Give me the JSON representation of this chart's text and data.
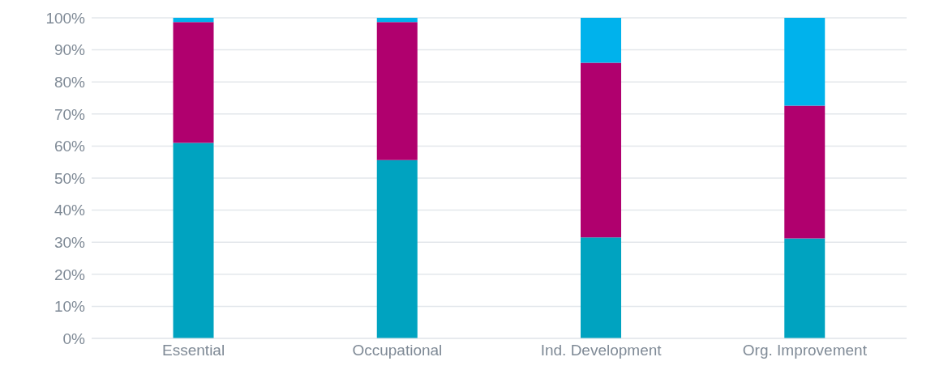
{
  "chart_data": {
    "type": "bar",
    "stacked": true,
    "categories": [
      "Essential",
      "Occupational",
      "Ind. Development",
      "Org. Improvement"
    ],
    "series": [
      {
        "color": "#00a3c0",
        "values": [
          61,
          55.6,
          31.5,
          31.2
        ]
      },
      {
        "color": "#b0006e",
        "values": [
          37.7,
          43.1,
          54.5,
          41.4
        ]
      },
      {
        "color": "#00b2ec",
        "values": [
          1.3,
          1.3,
          14,
          27.4
        ]
      }
    ],
    "ylim": [
      0,
      100
    ],
    "yticks": [
      {
        "value": 0,
        "label": "0%"
      },
      {
        "value": 10,
        "label": "10%"
      },
      {
        "value": 20,
        "label": "20%"
      },
      {
        "value": 30,
        "label": "30%"
      },
      {
        "value": 40,
        "label": "40%"
      },
      {
        "value": 50,
        "label": "50%"
      },
      {
        "value": 60,
        "label": "60%"
      },
      {
        "value": 70,
        "label": "70%"
      },
      {
        "value": 80,
        "label": "80%"
      },
      {
        "value": 90,
        "label": "90%"
      },
      {
        "value": 100,
        "label": "100%"
      }
    ],
    "grid": "y",
    "legend": false
  }
}
